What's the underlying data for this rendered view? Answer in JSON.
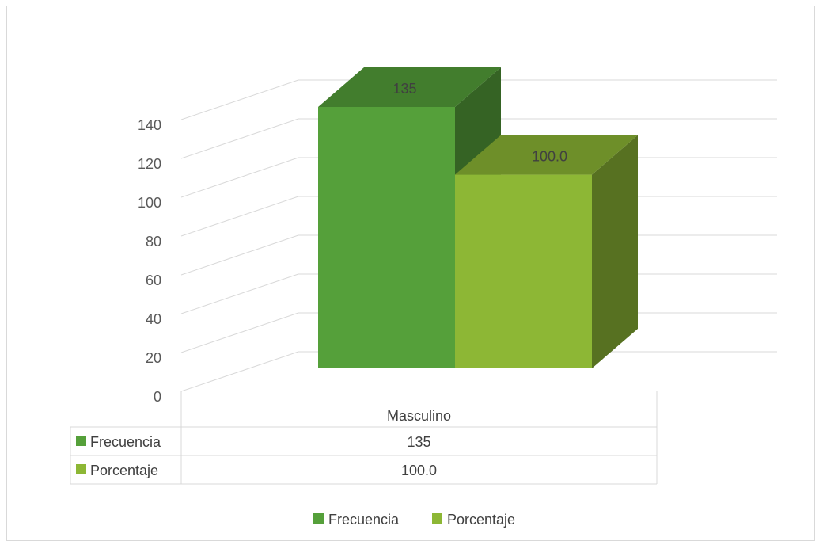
{
  "chart_data": {
    "type": "bar",
    "categories": [
      "Masculino"
    ],
    "series": [
      {
        "name": "Frecuencia",
        "values": [
          135
        ],
        "label": "135",
        "color": "#55a03a"
      },
      {
        "name": "Porcentaje",
        "values": [
          100.0
        ],
        "label": "100.0",
        "color": "#8db735"
      }
    ],
    "title": "",
    "xlabel": "",
    "ylabel": "",
    "ylim": [
      0,
      140
    ],
    "yticks": [
      "0",
      "20",
      "40",
      "60",
      "80",
      "100",
      "120",
      "140"
    ],
    "grid": true,
    "legend_position": "bottom",
    "data_table": true,
    "three_d": true
  }
}
